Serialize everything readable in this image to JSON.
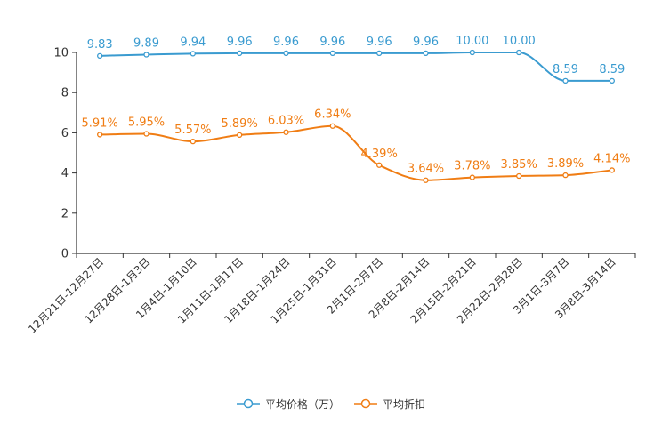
{
  "chart_data": {
    "type": "line",
    "categories": [
      "12月21日-12月27日",
      "12月28日-1月3日",
      "1月4日-1月10日",
      "1月11日-1月17日",
      "1月18日-1月24日",
      "1月25日-1月31日",
      "2月1日-2月7日",
      "2月8日-2月14日",
      "2月15日-2月21日",
      "2月22日-2月28日",
      "3月1日-3月7日",
      "3月8日-3月14日"
    ],
    "series": [
      {
        "name": "平均价格（万）",
        "color": "#3a9bd0",
        "values": [
          9.83,
          9.89,
          9.94,
          9.96,
          9.96,
          9.96,
          9.96,
          9.96,
          10.0,
          10.0,
          8.59,
          8.59
        ],
        "labels": [
          "9.83",
          "9.89",
          "9.94",
          "9.96",
          "9.96",
          "9.96",
          "9.96",
          "9.96",
          "10.00",
          "10.00",
          "8.59",
          "8.59"
        ]
      },
      {
        "name": "平均折扣",
        "color": "#f07d14",
        "values": [
          5.91,
          5.95,
          5.57,
          5.89,
          6.03,
          6.34,
          4.39,
          3.64,
          3.78,
          3.85,
          3.89,
          4.14
        ],
        "labels": [
          "5.91%",
          "5.95%",
          "5.57%",
          "5.89%",
          "6.03%",
          "6.34%",
          "4.39%",
          "3.64%",
          "3.78%",
          "3.85%",
          "3.89%",
          "4.14%"
        ]
      }
    ],
    "yticks": [
      "0",
      "2",
      "4",
      "6",
      "8",
      "10"
    ],
    "ylim": [
      0,
      10
    ],
    "grid": false,
    "legend_position": "bottom-center"
  }
}
